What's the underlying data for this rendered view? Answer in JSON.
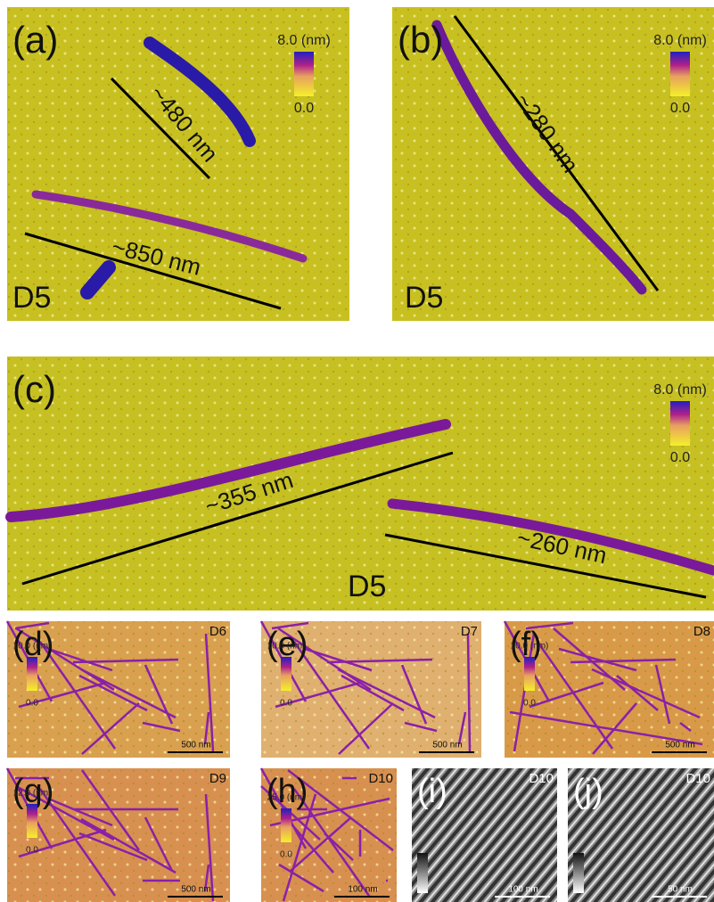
{
  "panels": [
    {
      "label": "(a)",
      "sample": "D5",
      "colorbar_max": "8.0 (nm)",
      "colorbar_min": "0.0",
      "measurements": [
        "~480 nm",
        "~850 nm"
      ]
    },
    {
      "label": "(b)",
      "sample": "D5",
      "colorbar_max": "8.0 (nm)",
      "colorbar_min": "0.0",
      "measurements": [
        "~280 nm"
      ]
    },
    {
      "label": "(c)",
      "sample": "D5",
      "colorbar_max": "8.0 (nm)",
      "colorbar_min": "0.0",
      "measurements": [
        "~355 nm",
        "~260 nm"
      ]
    },
    {
      "label": "(d)",
      "sample": "D6",
      "colorbar_max": "10.0 (nm)",
      "colorbar_min": "0.0",
      "scale_bar": "500 nm"
    },
    {
      "label": "(e)",
      "sample": "D7",
      "colorbar_max": "10.0 (nm)",
      "colorbar_min": "0.0",
      "scale_bar": "500 nm"
    },
    {
      "label": "(f)",
      "sample": "D8",
      "colorbar_max": "10.0 (nm)",
      "colorbar_min": "0.0",
      "scale_bar": "500 nm"
    },
    {
      "label": "(g)",
      "sample": "D9",
      "colorbar_max": "12.0 (nm)",
      "colorbar_min": "0.0",
      "scale_bar": "500 nm"
    },
    {
      "label": "(h)",
      "sample": "D10",
      "colorbar_max": "25.0 (nm)",
      "colorbar_min": "0.0",
      "scale_bar": "100 nm"
    },
    {
      "label": "(i)",
      "sample": "D10",
      "scale_bar": "100 nm"
    },
    {
      "label": "(j)",
      "sample": "D10",
      "scale_bar": "50 nm"
    }
  ]
}
